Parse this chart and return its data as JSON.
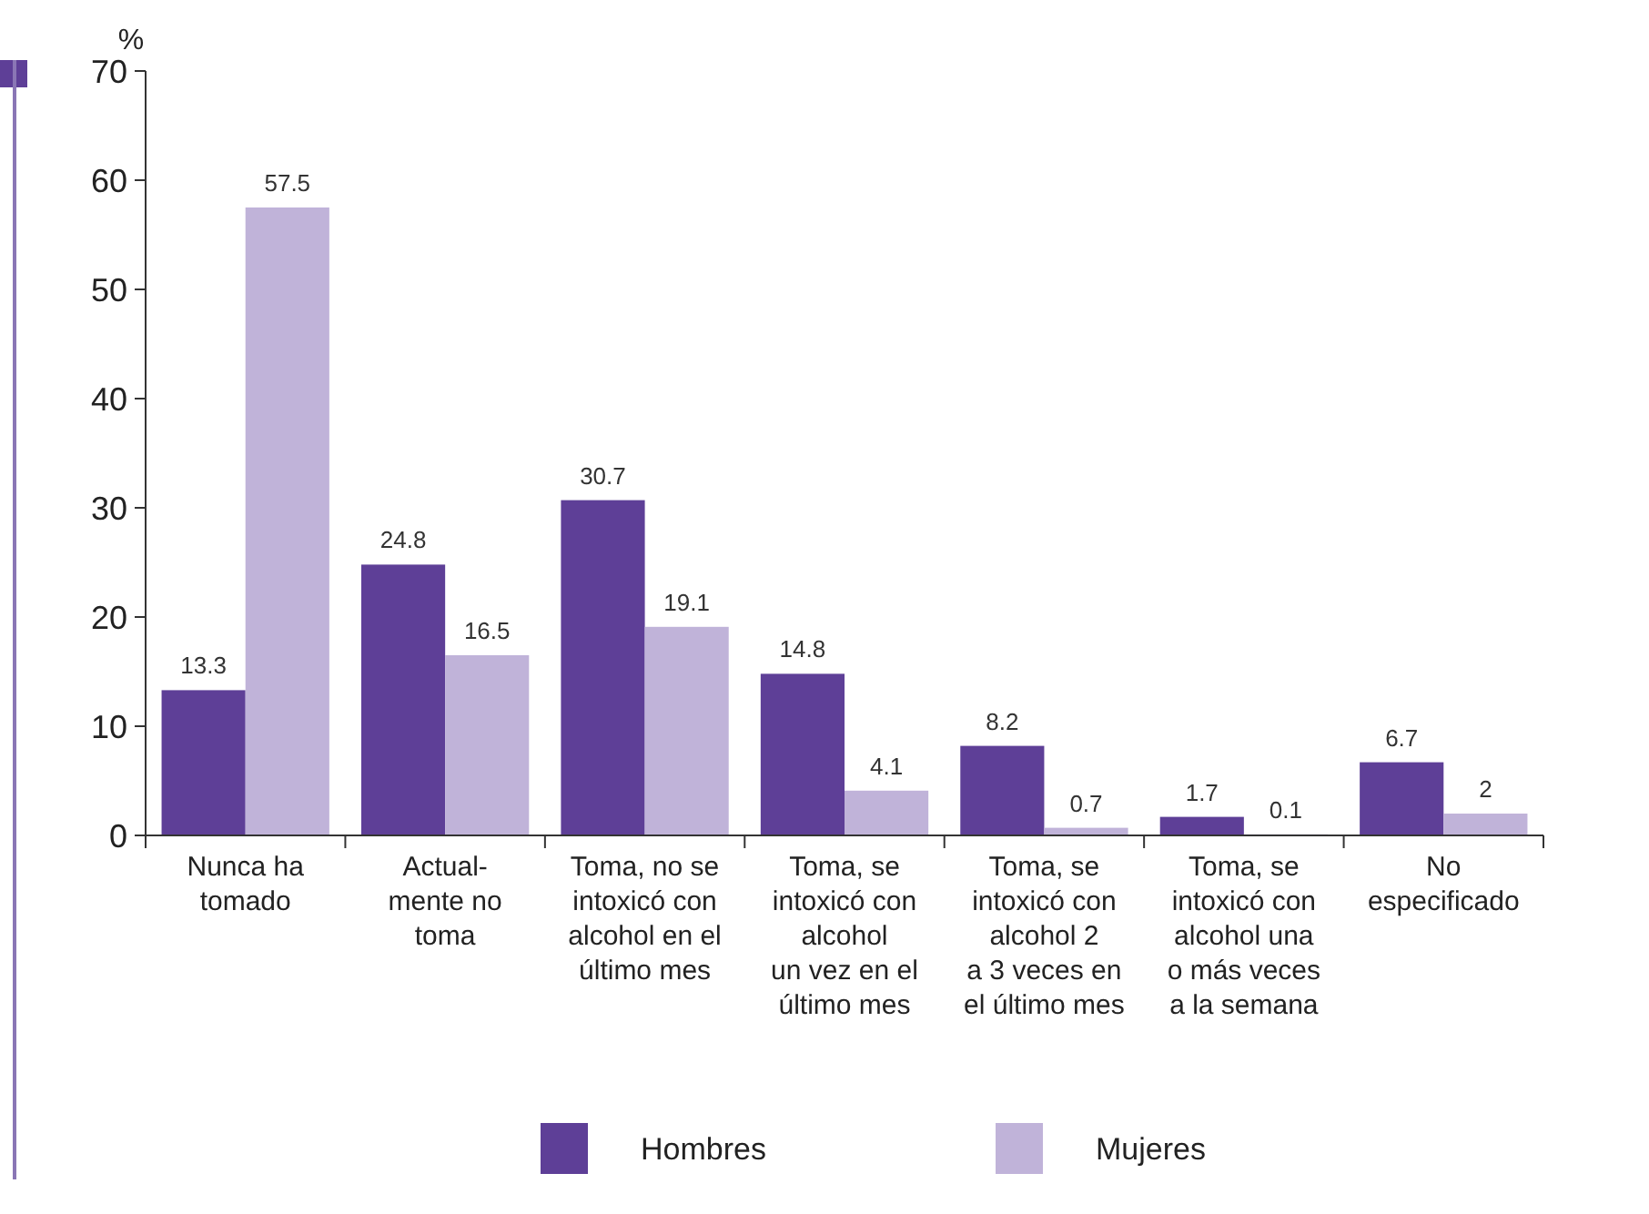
{
  "chart_data": {
    "type": "bar",
    "ylabel": "%",
    "categories": [
      "Nunca ha\ntomado",
      "Actual-\nmente no\ntoma",
      "Toma, no se\nintoxicó con\nalcohol en el\núltimo mes",
      "Toma, se\nintoxicó con\nalcohol\nun vez en el\núltimo mes",
      "Toma, se\nintoxicó con\nalcohol 2\na 3 veces en\nel último mes",
      "Toma, se\nintoxicó con\nalcohol una\no más veces\na la semana",
      "No\nespecificado"
    ],
    "series": [
      {
        "name": "Hombres",
        "color": "#5e3f97",
        "values": [
          13.3,
          24.8,
          30.7,
          14.8,
          8.2,
          1.7,
          6.7
        ]
      },
      {
        "name": "Mujeres",
        "color": "#c0b3d9",
        "values": [
          57.5,
          16.5,
          19.1,
          4.1,
          0.7,
          0.1,
          2
        ]
      }
    ],
    "ylim": [
      0,
      70
    ],
    "yticks": [
      0,
      10,
      20,
      30,
      40,
      50,
      60,
      70
    ],
    "data_labels": true,
    "legend": "bottom",
    "grid": false
  }
}
